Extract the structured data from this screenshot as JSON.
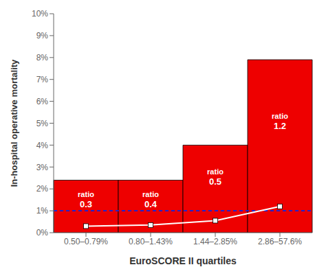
{
  "chart_data": {
    "type": "bar",
    "categories": [
      "0.50–0.79%",
      "0.80–1.43%",
      "1.44–2.85%",
      "2.86–57.6%"
    ],
    "series": [
      {
        "type": "bar",
        "values": [
          2.4,
          2.4,
          4.0,
          7.9
        ],
        "color": "#ee0000"
      },
      {
        "type": "line",
        "values": [
          0.3,
          0.35,
          0.55,
          1.2
        ],
        "color": "#ffffff",
        "marker": "square"
      }
    ],
    "hline": {
      "value": 1.0,
      "color": "#2222cc",
      "line_style": "dashed"
    },
    "annotations": [
      [
        "ratio",
        "0.3"
      ],
      [
        "ratio",
        "0.4"
      ],
      [
        "ratio",
        "0.5"
      ],
      [
        "ratio",
        "1.2"
      ]
    ],
    "xlabel": "EuroSCORE II quartiles",
    "ylabel": "In-hospital operative mortality",
    "ylim": [
      0,
      10
    ],
    "yticks": [
      {
        "value": 0,
        "label": "0%"
      },
      {
        "value": 1,
        "label": "1%"
      },
      {
        "value": 2,
        "label": "2%"
      },
      {
        "value": 3,
        "label": "3%"
      },
      {
        "value": 4,
        "label": "4%"
      },
      {
        "value": 5,
        "label": "5%"
      },
      {
        "value": 6,
        "label": "6%"
      },
      {
        "value": 7,
        "label": "7%"
      },
      {
        "value": 8,
        "label": "8%"
      },
      {
        "value": 9,
        "label": "9%"
      },
      {
        "value": 10,
        "label": "10%"
      }
    ],
    "grid": false
  }
}
